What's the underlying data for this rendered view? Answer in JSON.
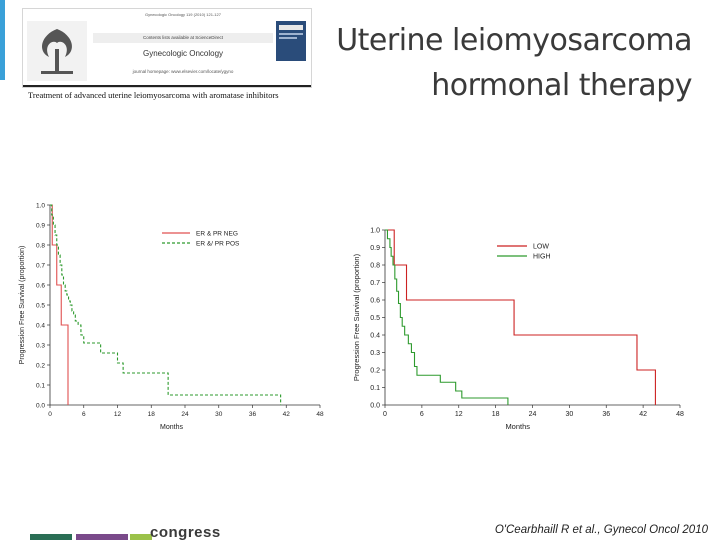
{
  "slide": {
    "title_line1": "Uterine leiomyosarcoma",
    "title_line2": "hormonal therapy",
    "citation": "O'Cearbhaill R et al., Gynecol Oncol 2010",
    "footer_brand": "congress"
  },
  "journal": {
    "ref": "Gynecologic Oncology 119 (2010) 121-127",
    "contents": "Contents lists available at ScienceDirect",
    "name": "Gynecologic Oncology",
    "homepage": "journal homepage: www.elsevier.com/locate/ygyno",
    "article_title": "Treatment of advanced uterine leiomyosarcoma with aromatase inhibitors"
  },
  "chart_data": [
    {
      "type": "line",
      "step": true,
      "title": "",
      "xlabel": "Months",
      "ylabel": "Progression Free Survival (proportion)",
      "xlim": [
        0,
        48
      ],
      "ylim": [
        0,
        1
      ],
      "xticks": [
        0,
        6,
        12,
        18,
        24,
        30,
        36,
        42,
        48
      ],
      "yticks": [
        0.0,
        0.1,
        0.2,
        0.3,
        0.4,
        0.5,
        0.6,
        0.7,
        0.8,
        0.9,
        1.0
      ],
      "legend_position": "top-right",
      "series": [
        {
          "name": "ER & PR NEG",
          "color": "#e05050",
          "dash": false,
          "x": [
            0,
            0.4,
            0.8,
            1.2,
            1.6,
            2.0,
            2.6,
            3.2
          ],
          "y": [
            1.0,
            0.8,
            0.8,
            0.6,
            0.6,
            0.4,
            0.4,
            0.0
          ]
        },
        {
          "name": "ER &/ PR POS",
          "color": "#2d9a2d",
          "dash": true,
          "x": [
            0,
            0.3,
            0.6,
            0.9,
            1.2,
            1.5,
            1.8,
            2.1,
            2.4,
            2.7,
            3.0,
            3.3,
            3.6,
            3.9,
            4.2,
            4.5,
            5.0,
            5.5,
            6.0,
            9.0,
            12.0,
            13.0,
            21.0,
            41.0
          ],
          "y": [
            1.0,
            0.95,
            0.9,
            0.85,
            0.8,
            0.75,
            0.7,
            0.65,
            0.6,
            0.57,
            0.55,
            0.52,
            0.5,
            0.47,
            0.45,
            0.42,
            0.4,
            0.35,
            0.31,
            0.26,
            0.21,
            0.16,
            0.05,
            0.0
          ]
        }
      ]
    },
    {
      "type": "line",
      "step": true,
      "title": "",
      "xlabel": "Months",
      "ylabel": "Progression Free Survival (proportion)",
      "xlim": [
        0,
        48
      ],
      "ylim": [
        0,
        1
      ],
      "xticks": [
        0,
        6,
        12,
        18,
        24,
        30,
        36,
        42,
        48
      ],
      "yticks": [
        0.0,
        0.1,
        0.2,
        0.3,
        0.4,
        0.5,
        0.6,
        0.7,
        0.8,
        0.9,
        1.0
      ],
      "legend_position": "top-right",
      "series": [
        {
          "name": "LOW",
          "color": "#cc2222",
          "dash": false,
          "x": [
            0,
            1.5,
            2.0,
            3.5,
            21.0,
            41.0,
            44.0
          ],
          "y": [
            1.0,
            0.8,
            0.8,
            0.6,
            0.4,
            0.2,
            0.0
          ]
        },
        {
          "name": "HIGH",
          "color": "#2d9a2d",
          "dash": false,
          "x": [
            0,
            0.4,
            0.8,
            1.0,
            1.3,
            1.6,
            1.9,
            2.2,
            2.5,
            2.8,
            3.2,
            3.8,
            4.3,
            4.8,
            5.2,
            9.0,
            11.5,
            12.5,
            20.0
          ],
          "y": [
            1.0,
            0.95,
            0.9,
            0.85,
            0.8,
            0.72,
            0.65,
            0.58,
            0.5,
            0.45,
            0.4,
            0.35,
            0.3,
            0.22,
            0.17,
            0.13,
            0.08,
            0.04,
            0.0
          ]
        }
      ]
    }
  ]
}
